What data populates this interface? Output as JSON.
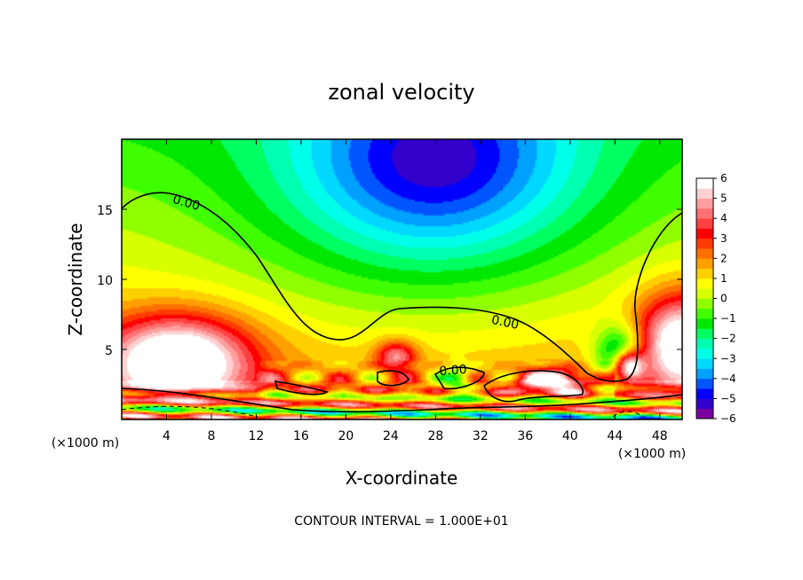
{
  "chart_data": {
    "type": "heatmap",
    "title": "zonal velocity",
    "xlabel": "X-coordinate",
    "ylabel": "Z-coordinate",
    "x_unit_label": "(×1000 m)",
    "y_unit_label": "(×1000 m)",
    "xlim": [
      0,
      50
    ],
    "ylim": [
      0,
      20
    ],
    "x_ticks": [
      4,
      8,
      12,
      16,
      20,
      24,
      28,
      32,
      36,
      40,
      44,
      48
    ],
    "y_ticks": [
      5,
      10,
      15
    ],
    "colorbar": {
      "min": -6,
      "max": 6,
      "ticks": [
        6,
        5,
        4,
        3,
        2,
        1,
        0,
        -1,
        -2,
        -3,
        -4,
        -5,
        -6
      ],
      "tick_labels": [
        "6",
        "5",
        "4",
        "3",
        "2",
        "1",
        "0",
        "−1",
        "−2",
        "−3",
        "−4",
        "−5",
        "−6"
      ],
      "colors": [
        "#7a00a0",
        "#3300cc",
        "#0000ff",
        "#0055ff",
        "#00a0ff",
        "#00d8ff",
        "#00ffe8",
        "#00ffb0",
        "#00ff60",
        "#00e800",
        "#40ff00",
        "#90ff00",
        "#d8ff00",
        "#ffff00",
        "#ffd000",
        "#ffa000",
        "#ff7000",
        "#ff3c00",
        "#ff0000",
        "#ff4040",
        "#ff7070",
        "#ffa0a0",
        "#ffd0d0",
        "#ffffff"
      ]
    },
    "field_features": [
      {
        "kind": "negative-core",
        "x": 28,
        "z": 18.5,
        "value": -3.4,
        "sx": 8,
        "sz": 4.5
      },
      {
        "kind": "negative-broad",
        "x": 27,
        "z": 14,
        "value": -1.8,
        "sx": 14,
        "sz": 7
      },
      {
        "kind": "positive-jet",
        "x": 5,
        "z": 4.2,
        "value": 6.2,
        "sx": 4.5,
        "sz": 2.2
      },
      {
        "kind": "positive-jet",
        "x": 50,
        "z": 5.5,
        "value": 5.5,
        "sx": 3,
        "sz": 2.5
      },
      {
        "kind": "negative-pocket",
        "x": 44.5,
        "z": 4.5,
        "value": -4.5,
        "sx": 1.6,
        "sz": 1.5
      },
      {
        "kind": "positive-pocket",
        "x": 45.2,
        "z": 3.8,
        "value": 6.5,
        "sx": 1.0,
        "sz": 0.8
      },
      {
        "kind": "positive-pocket",
        "x": 38.5,
        "z": 2.7,
        "value": 5.5,
        "sx": 2.2,
        "sz": 0.6
      },
      {
        "kind": "positive-pocket",
        "x": 24.5,
        "z": 4.5,
        "value": 3.5,
        "sx": 1.3,
        "sz": 0.8
      },
      {
        "kind": "negative-pocket",
        "x": 30,
        "z": 2.5,
        "value": -3.0,
        "sx": 1.0,
        "sz": 0.8
      }
    ],
    "contour_interval_text": "CONTOUR INTERVAL = 1.000E+01",
    "contour_labels": [
      "0.00",
      "0.00",
      "0.00"
    ]
  }
}
